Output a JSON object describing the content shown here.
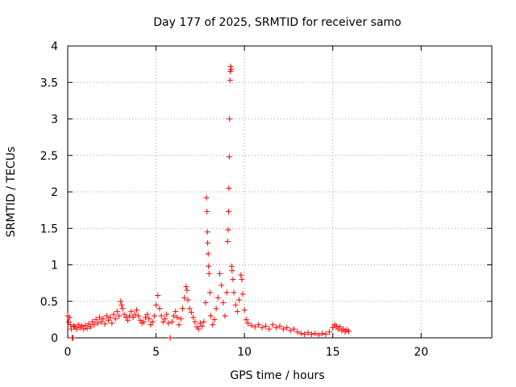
{
  "chart_data": {
    "type": "scatter",
    "title": "Day 177 of 2025, SRMTID for receiver samo",
    "xlabel": "GPS time / hours",
    "ylabel": "SRMTID / TECUs",
    "xlim": [
      0,
      24
    ],
    "ylim": [
      0,
      4
    ],
    "x_ticks": [
      0,
      5,
      10,
      15,
      20
    ],
    "y_ticks": [
      0,
      0.5,
      1,
      1.5,
      2,
      2.5,
      3,
      3.5,
      4
    ],
    "x_tick_labels": [
      "0",
      "5",
      "10",
      "15",
      "20"
    ],
    "y_tick_labels": [
      "0",
      "0.5",
      "1",
      "1.5",
      "2",
      "2.5",
      "3",
      "3.5",
      "4"
    ],
    "grid": true,
    "marker": "+",
    "series_color": "#ff0000",
    "series": [
      {
        "name": "SRMTID",
        "points": [
          [
            0.0,
            0.3
          ],
          [
            0.05,
            0.22
          ],
          [
            0.1,
            0.28
          ],
          [
            0.15,
            0.18
          ],
          [
            0.2,
            0.12
          ],
          [
            0.25,
            0.0
          ],
          [
            0.3,
            0.0
          ],
          [
            0.35,
            0.16
          ],
          [
            0.4,
            0.15
          ],
          [
            0.5,
            0.12
          ],
          [
            0.6,
            0.18
          ],
          [
            0.7,
            0.14
          ],
          [
            0.8,
            0.16
          ],
          [
            0.9,
            0.12
          ],
          [
            1.0,
            0.17
          ],
          [
            1.1,
            0.13
          ],
          [
            1.2,
            0.19
          ],
          [
            1.3,
            0.15
          ],
          [
            1.4,
            0.22
          ],
          [
            1.5,
            0.18
          ],
          [
            1.6,
            0.25
          ],
          [
            1.7,
            0.2
          ],
          [
            1.8,
            0.28
          ],
          [
            1.9,
            0.22
          ],
          [
            2.0,
            0.26
          ],
          [
            2.1,
            0.19
          ],
          [
            2.2,
            0.3
          ],
          [
            2.3,
            0.24
          ],
          [
            2.4,
            0.28
          ],
          [
            2.5,
            0.2
          ],
          [
            2.6,
            0.32
          ],
          [
            2.7,
            0.26
          ],
          [
            2.8,
            0.36
          ],
          [
            2.9,
            0.3
          ],
          [
            3.0,
            0.5
          ],
          [
            3.05,
            0.45
          ],
          [
            3.1,
            0.4
          ],
          [
            3.2,
            0.32
          ],
          [
            3.3,
            0.28
          ],
          [
            3.4,
            0.24
          ],
          [
            3.5,
            0.3
          ],
          [
            3.6,
            0.36
          ],
          [
            3.7,
            0.28
          ],
          [
            3.8,
            0.32
          ],
          [
            3.9,
            0.38
          ],
          [
            4.0,
            0.3
          ],
          [
            4.1,
            0.24
          ],
          [
            4.2,
            0.2
          ],
          [
            4.3,
            0.22
          ],
          [
            4.4,
            0.28
          ],
          [
            4.5,
            0.32
          ],
          [
            4.6,
            0.26
          ],
          [
            4.7,
            0.18
          ],
          [
            4.8,
            0.22
          ],
          [
            4.9,
            0.3
          ],
          [
            5.0,
            0.45
          ],
          [
            5.1,
            0.58
          ],
          [
            5.2,
            0.4
          ],
          [
            5.3,
            0.3
          ],
          [
            5.4,
            0.22
          ],
          [
            5.5,
            0.26
          ],
          [
            5.6,
            0.32
          ],
          [
            5.7,
            0.2
          ],
          [
            5.8,
            0.0
          ],
          [
            5.9,
            0.22
          ],
          [
            6.0,
            0.3
          ],
          [
            6.1,
            0.36
          ],
          [
            6.2,
            0.28
          ],
          [
            6.3,
            0.18
          ],
          [
            6.4,
            0.26
          ],
          [
            6.5,
            0.4
          ],
          [
            6.6,
            0.55
          ],
          [
            6.7,
            0.7
          ],
          [
            6.75,
            0.65
          ],
          [
            6.8,
            0.52
          ],
          [
            6.9,
            0.4
          ],
          [
            7.0,
            0.35
          ],
          [
            7.1,
            0.28
          ],
          [
            7.2,
            0.22
          ],
          [
            7.3,
            0.15
          ],
          [
            7.4,
            0.12
          ],
          [
            7.5,
            0.2
          ],
          [
            7.6,
            0.16
          ],
          [
            7.7,
            0.22
          ],
          [
            7.8,
            0.48
          ],
          [
            7.85,
            1.92
          ],
          [
            7.88,
            1.73
          ],
          [
            7.9,
            1.45
          ],
          [
            7.92,
            1.3
          ],
          [
            7.95,
            1.15
          ],
          [
            7.97,
            0.98
          ],
          [
            8.0,
            0.88
          ],
          [
            8.05,
            0.62
          ],
          [
            8.1,
            0.3
          ],
          [
            8.2,
            0.18
          ],
          [
            8.3,
            0.25
          ],
          [
            8.4,
            0.4
          ],
          [
            8.5,
            0.55
          ],
          [
            8.6,
            0.88
          ],
          [
            8.7,
            0.72
          ],
          [
            8.8,
            0.48
          ],
          [
            8.9,
            0.3
          ],
          [
            9.0,
            0.62
          ],
          [
            9.05,
            1.32
          ],
          [
            9.08,
            1.48
          ],
          [
            9.1,
            1.73
          ],
          [
            9.12,
            2.05
          ],
          [
            9.14,
            2.48
          ],
          [
            9.16,
            3.0
          ],
          [
            9.18,
            3.53
          ],
          [
            9.2,
            3.65
          ],
          [
            9.22,
            3.72
          ],
          [
            9.25,
            3.68
          ],
          [
            9.28,
            0.98
          ],
          [
            9.3,
            0.92
          ],
          [
            9.35,
            0.8
          ],
          [
            9.4,
            0.62
          ],
          [
            9.5,
            0.45
          ],
          [
            9.6,
            0.36
          ],
          [
            9.7,
            0.52
          ],
          [
            9.8,
            0.86
          ],
          [
            9.85,
            0.8
          ],
          [
            9.9,
            0.6
          ],
          [
            10.0,
            0.38
          ],
          [
            10.1,
            0.25
          ],
          [
            10.2,
            0.2
          ],
          [
            10.4,
            0.17
          ],
          [
            10.6,
            0.15
          ],
          [
            10.8,
            0.18
          ],
          [
            11.0,
            0.14
          ],
          [
            11.2,
            0.16
          ],
          [
            11.4,
            0.12
          ],
          [
            11.6,
            0.18
          ],
          [
            11.8,
            0.14
          ],
          [
            12.0,
            0.16
          ],
          [
            12.2,
            0.12
          ],
          [
            12.4,
            0.14
          ],
          [
            12.6,
            0.1
          ],
          [
            12.8,
            0.12
          ],
          [
            13.0,
            0.08
          ],
          [
            13.2,
            0.06
          ],
          [
            13.4,
            0.05
          ],
          [
            13.6,
            0.07
          ],
          [
            13.8,
            0.05
          ],
          [
            14.0,
            0.06
          ],
          [
            14.2,
            0.04
          ],
          [
            14.4,
            0.06
          ],
          [
            14.6,
            0.05
          ],
          [
            14.8,
            0.08
          ],
          [
            15.0,
            0.14
          ],
          [
            15.1,
            0.18
          ],
          [
            15.2,
            0.16
          ],
          [
            15.3,
            0.12
          ],
          [
            15.4,
            0.15
          ],
          [
            15.5,
            0.1
          ],
          [
            15.6,
            0.12
          ],
          [
            15.7,
            0.08
          ],
          [
            15.8,
            0.11
          ],
          [
            15.9,
            0.09
          ]
        ]
      }
    ]
  }
}
